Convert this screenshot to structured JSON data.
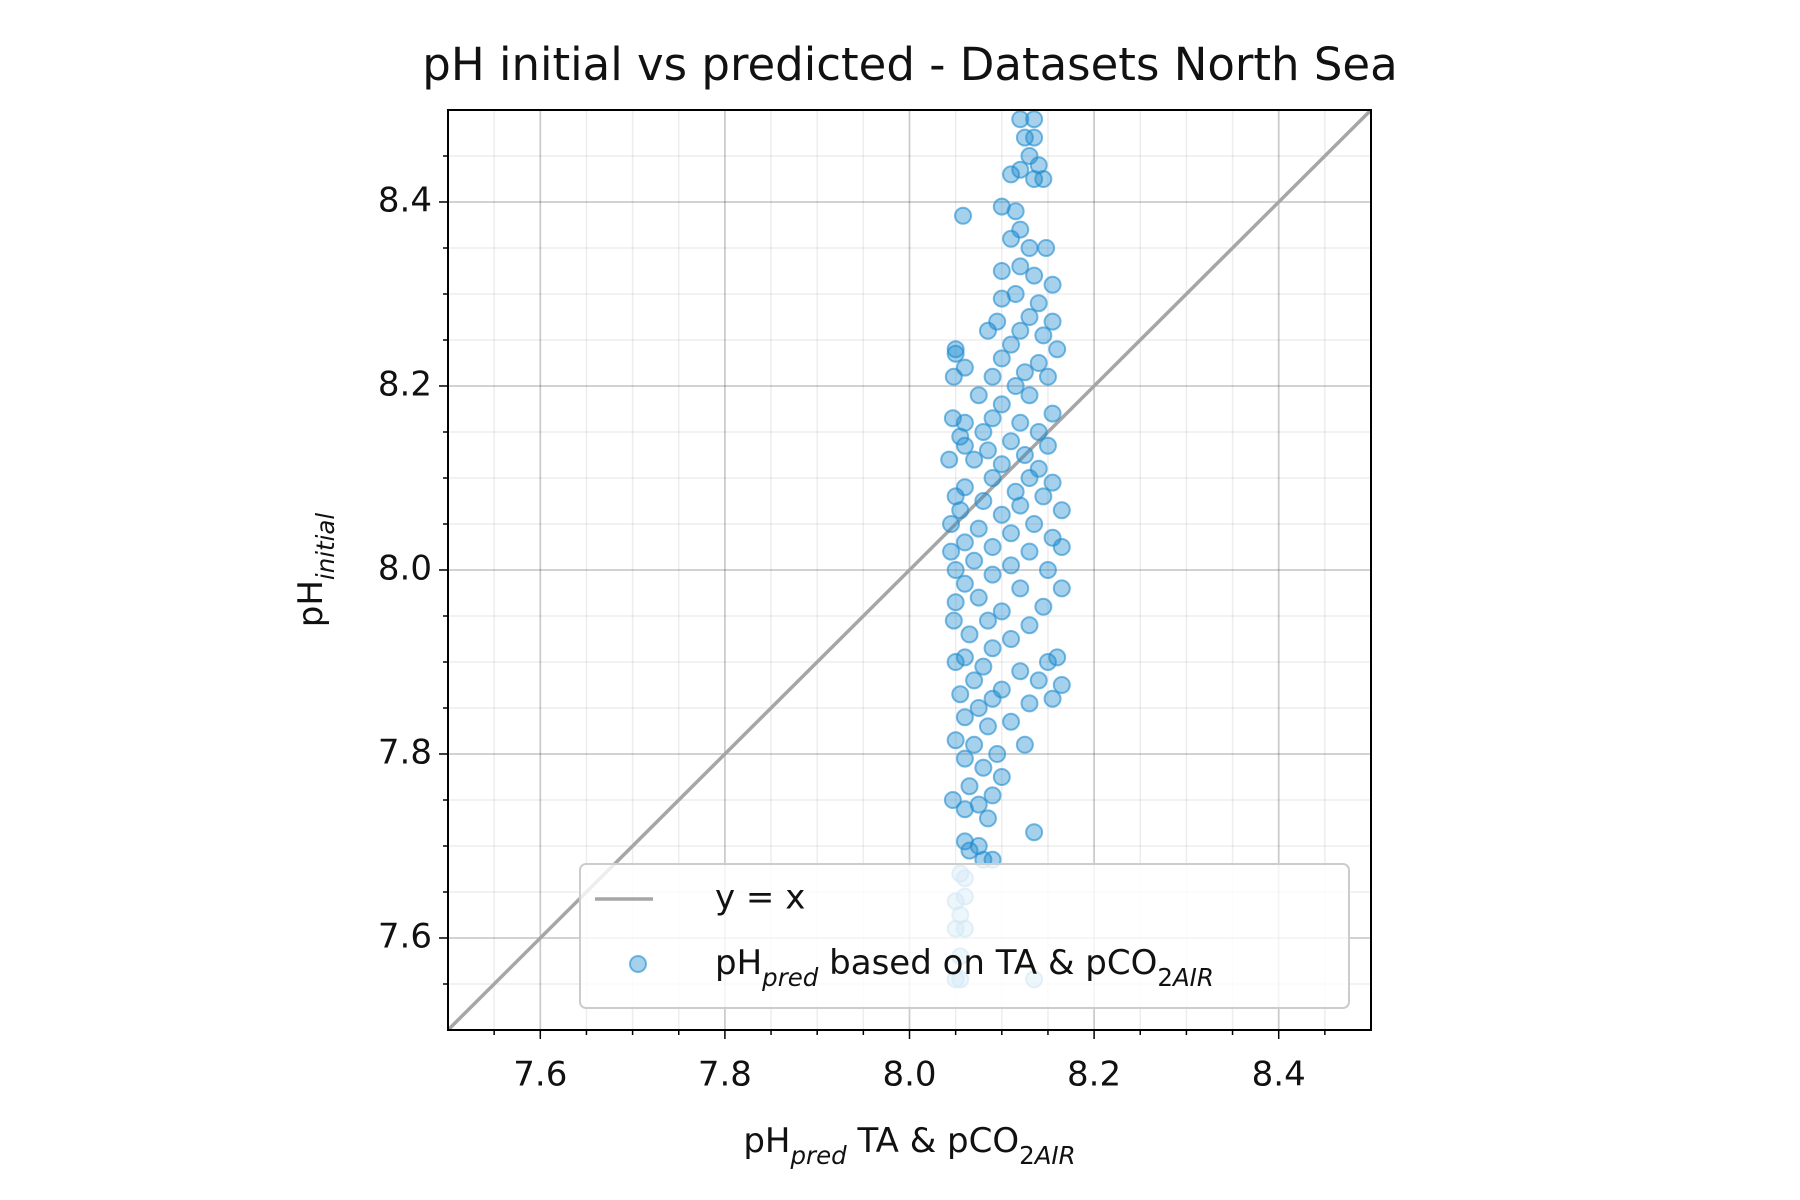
{
  "chart_data": {
    "type": "scatter",
    "title": "pH initial vs predicted - Datasets North Sea",
    "x_label": [
      {
        "text": "pH"
      },
      {
        "text": "pred",
        "sub": true,
        "italic": true
      },
      {
        "text": " TA & pCO"
      },
      {
        "text": "2",
        "sub": true
      },
      {
        "text": "AIR",
        "sub": true,
        "italic": true
      }
    ],
    "y_label": [
      {
        "text": "pH"
      },
      {
        "text": "initial",
        "sub": true,
        "italic": true
      }
    ],
    "xlim": [
      7.5,
      8.5
    ],
    "ylim": [
      7.5,
      8.5
    ],
    "xticks": [
      7.6,
      7.8,
      {
        "value": 8,
        "label": "8.0"
      },
      8.2,
      8.4
    ],
    "yticks": [
      7.6,
      7.8,
      {
        "value": 8,
        "label": "8.0"
      },
      8.2,
      8.4
    ],
    "minor_ticks": [
      7.55,
      7.65,
      7.7,
      7.75,
      7.85,
      7.9,
      7.95,
      8.05,
      8.1,
      8.15,
      8.25,
      8.3,
      8.35,
      8.45
    ],
    "grid": true,
    "legend": "lower right",
    "reference_line": {
      "name": "y = x",
      "color": "#a6a6a6"
    },
    "series": [
      {
        "name": [
          {
            "text": "pH"
          },
          {
            "text": "pred",
            "sub": true,
            "italic": true
          },
          {
            "text": " based on TA & pCO"
          },
          {
            "text": "2",
            "sub": true
          },
          {
            "text": "AIR",
            "sub": true,
            "italic": true
          }
        ],
        "color": "#1f8ccf",
        "x": [
          8.12,
          8.135,
          8.125,
          8.135,
          8.13,
          8.14,
          8.11,
          8.12,
          8.145,
          8.135,
          8.058,
          8.1,
          8.115,
          8.12,
          8.11,
          8.13,
          8.148,
          8.12,
          8.1,
          8.135,
          8.155,
          8.115,
          8.1,
          8.14,
          8.13,
          8.155,
          8.095,
          8.12,
          8.145,
          8.085,
          8.16,
          8.11,
          8.05,
          8.05,
          8.1,
          8.14,
          8.125,
          8.048,
          8.06,
          8.09,
          8.15,
          8.115,
          8.075,
          8.13,
          8.1,
          8.155,
          8.047,
          8.09,
          8.12,
          8.06,
          8.14,
          8.08,
          8.055,
          8.11,
          8.06,
          8.15,
          8.085,
          8.125,
          8.043,
          8.07,
          8.1,
          8.14,
          8.09,
          8.13,
          8.155,
          8.06,
          8.115,
          8.05,
          8.145,
          8.08,
          8.12,
          8.165,
          8.055,
          8.1,
          8.045,
          8.135,
          8.075,
          8.11,
          8.155,
          8.06,
          8.09,
          8.045,
          8.13,
          8.165,
          8.07,
          8.11,
          8.05,
          8.15,
          8.09,
          8.06,
          8.12,
          8.165,
          8.075,
          8.05,
          8.145,
          8.1,
          8.085,
          8.048,
          8.13,
          8.065,
          8.11,
          8.09,
          8.06,
          8.16,
          8.15,
          8.05,
          8.08,
          8.12,
          8.07,
          8.14,
          8.165,
          8.1,
          8.055,
          8.09,
          8.155,
          8.075,
          8.13,
          8.06,
          8.11,
          8.085,
          8.05,
          8.07,
          8.095,
          8.125,
          8.06,
          8.08,
          8.1,
          8.065,
          8.09,
          8.047,
          8.075,
          8.06,
          8.085,
          8.135,
          8.06,
          8.075,
          8.065,
          8.08,
          8.09,
          8.055,
          8.06,
          8.05,
          8.06,
          8.055,
          8.05,
          8.06,
          8.055,
          8.05,
          8.055,
          8.135
        ],
        "y": [
          8.49,
          8.49,
          8.47,
          8.47,
          8.45,
          8.44,
          8.43,
          8.435,
          8.425,
          8.425,
          8.385,
          8.395,
          8.39,
          8.37,
          8.36,
          8.35,
          8.35,
          8.33,
          8.325,
          8.32,
          8.31,
          8.3,
          8.295,
          8.29,
          8.275,
          8.27,
          8.27,
          8.26,
          8.255,
          8.26,
          8.24,
          8.245,
          8.24,
          8.235,
          8.23,
          8.225,
          8.215,
          8.21,
          8.22,
          8.21,
          8.21,
          8.2,
          8.19,
          8.19,
          8.18,
          8.17,
          8.165,
          8.165,
          8.16,
          8.16,
          8.15,
          8.15,
          8.145,
          8.14,
          8.135,
          8.135,
          8.13,
          8.125,
          8.12,
          8.12,
          8.115,
          8.11,
          8.1,
          8.1,
          8.095,
          8.09,
          8.085,
          8.08,
          8.08,
          8.075,
          8.07,
          8.065,
          8.065,
          8.06,
          8.05,
          8.05,
          8.045,
          8.04,
          8.035,
          8.03,
          8.025,
          8.02,
          8.02,
          8.025,
          8.01,
          8.005,
          8,
          8,
          7.995,
          7.985,
          7.98,
          7.98,
          7.97,
          7.965,
          7.96,
          7.955,
          7.945,
          7.945,
          7.94,
          7.93,
          7.925,
          7.915,
          7.905,
          7.905,
          7.9,
          7.9,
          7.895,
          7.89,
          7.88,
          7.88,
          7.875,
          7.87,
          7.865,
          7.86,
          7.86,
          7.85,
          7.855,
          7.84,
          7.835,
          7.83,
          7.815,
          7.81,
          7.8,
          7.81,
          7.795,
          7.785,
          7.775,
          7.765,
          7.755,
          7.75,
          7.745,
          7.74,
          7.73,
          7.715,
          7.705,
          7.7,
          7.695,
          7.685,
          7.685,
          7.67,
          7.665,
          7.64,
          7.645,
          7.625,
          7.61,
          7.61,
          7.58,
          7.555,
          7.555,
          7.555
        ]
      }
    ]
  }
}
